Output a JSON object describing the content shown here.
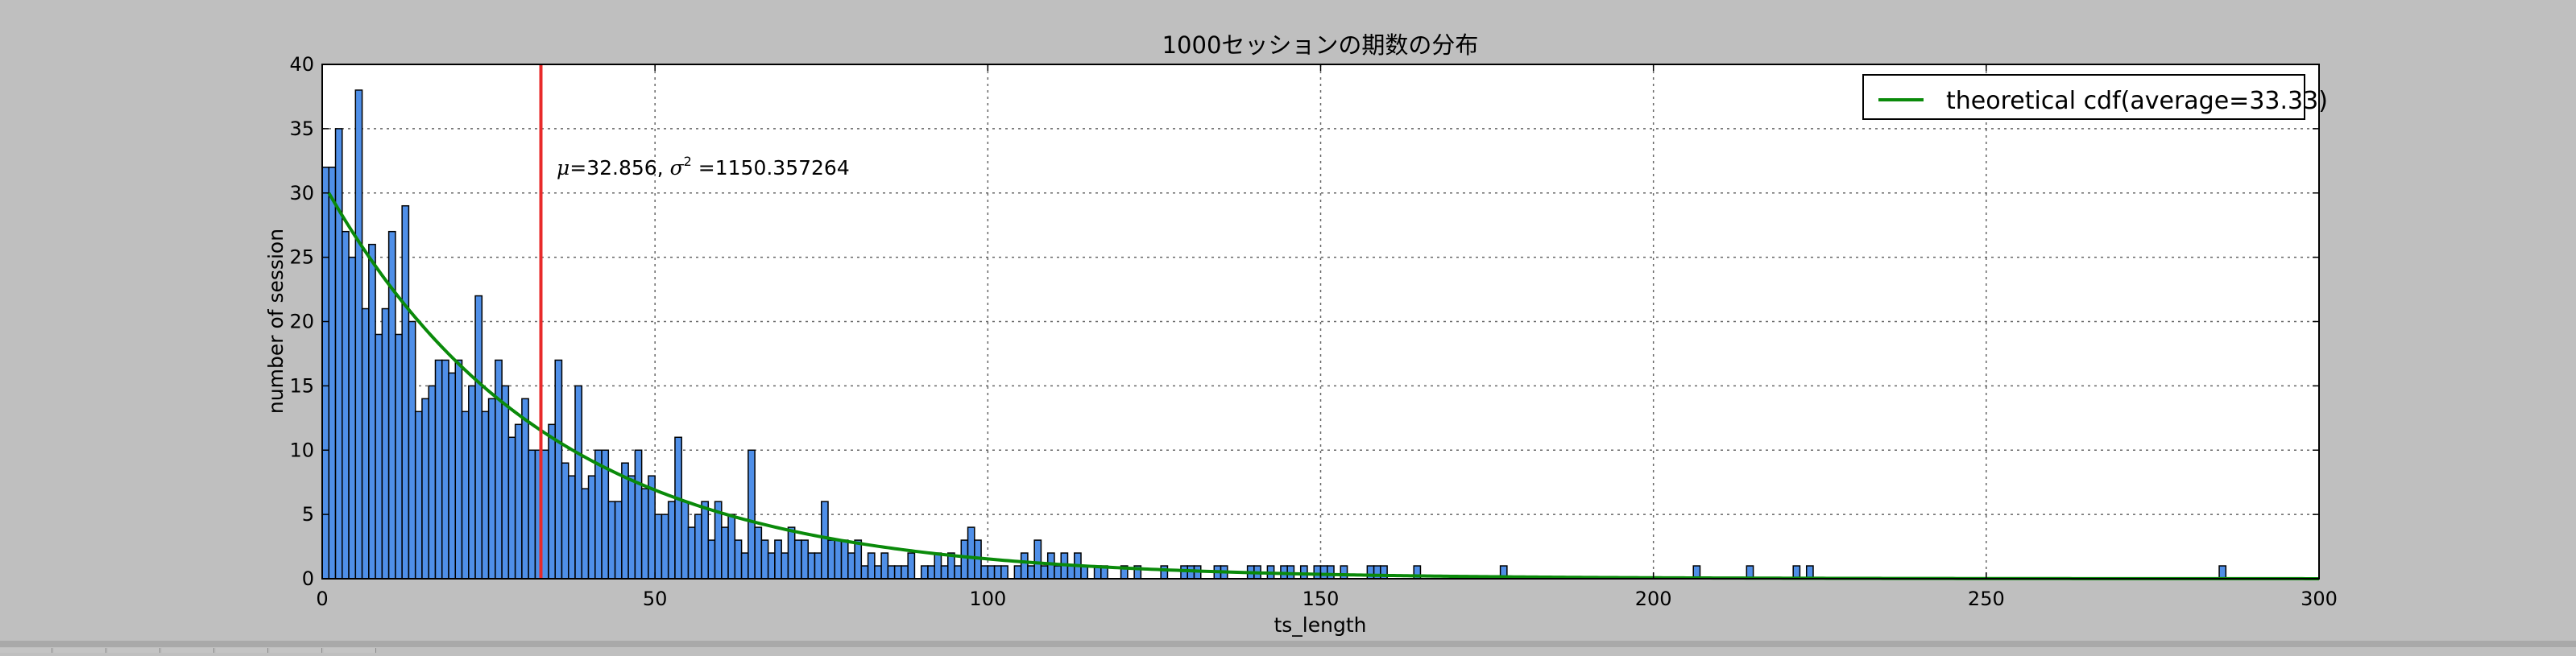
{
  "chart_data": {
    "type": "bar",
    "title": "1000セッションの期数の分布",
    "xlabel": "ts_length",
    "ylabel": "number of session",
    "xlim": [
      0,
      300
    ],
    "ylim": [
      0,
      40
    ],
    "xticks": [
      0,
      50,
      100,
      150,
      200,
      250,
      300
    ],
    "yticks": [
      0,
      5,
      10,
      15,
      20,
      25,
      30,
      35,
      40
    ],
    "grid": true,
    "legend_position": "top-right",
    "bin_width": 1,
    "bar_color": "#4f8fe8",
    "bins": [
      [
        1,
        32
      ],
      [
        2,
        32
      ],
      [
        3,
        35
      ],
      [
        4,
        27
      ],
      [
        5,
        25
      ],
      [
        6,
        38
      ],
      [
        7,
        21
      ],
      [
        8,
        26
      ],
      [
        9,
        19
      ],
      [
        10,
        21
      ],
      [
        11,
        27
      ],
      [
        12,
        19
      ],
      [
        13,
        29
      ],
      [
        14,
        20
      ],
      [
        15,
        13
      ],
      [
        16,
        14
      ],
      [
        17,
        15
      ],
      [
        18,
        17
      ],
      [
        19,
        17
      ],
      [
        20,
        16
      ],
      [
        21,
        17
      ],
      [
        22,
        13
      ],
      [
        23,
        15
      ],
      [
        24,
        22
      ],
      [
        25,
        13
      ],
      [
        26,
        14
      ],
      [
        27,
        17
      ],
      [
        28,
        15
      ],
      [
        29,
        11
      ],
      [
        30,
        12
      ],
      [
        31,
        14
      ],
      [
        32,
        10
      ],
      [
        33,
        10
      ],
      [
        34,
        10
      ],
      [
        35,
        12
      ],
      [
        36,
        17
      ],
      [
        37,
        9
      ],
      [
        38,
        8
      ],
      [
        39,
        15
      ],
      [
        40,
        7
      ],
      [
        41,
        8
      ],
      [
        42,
        10
      ],
      [
        43,
        10
      ],
      [
        44,
        6
      ],
      [
        45,
        6
      ],
      [
        46,
        9
      ],
      [
        47,
        8
      ],
      [
        48,
        10
      ],
      [
        49,
        7
      ],
      [
        50,
        8
      ],
      [
        51,
        5
      ],
      [
        52,
        5
      ],
      [
        53,
        6
      ],
      [
        54,
        11
      ],
      [
        55,
        6
      ],
      [
        56,
        4
      ],
      [
        57,
        5
      ],
      [
        58,
        6
      ],
      [
        59,
        3
      ],
      [
        60,
        6
      ],
      [
        61,
        4
      ],
      [
        62,
        5
      ],
      [
        63,
        3
      ],
      [
        64,
        2
      ],
      [
        65,
        10
      ],
      [
        66,
        4
      ],
      [
        67,
        3
      ],
      [
        68,
        2
      ],
      [
        69,
        3
      ],
      [
        70,
        2
      ],
      [
        71,
        4
      ],
      [
        72,
        3
      ],
      [
        73,
        3
      ],
      [
        74,
        2
      ],
      [
        75,
        2
      ],
      [
        76,
        6
      ],
      [
        77,
        3
      ],
      [
        78,
        3
      ],
      [
        79,
        3
      ],
      [
        80,
        2
      ],
      [
        81,
        3
      ],
      [
        82,
        1
      ],
      [
        83,
        2
      ],
      [
        84,
        1
      ],
      [
        85,
        2
      ],
      [
        86,
        1
      ],
      [
        87,
        1
      ],
      [
        88,
        1
      ],
      [
        89,
        2
      ],
      [
        91,
        1
      ],
      [
        92,
        1
      ],
      [
        93,
        2
      ],
      [
        94,
        1
      ],
      [
        95,
        2
      ],
      [
        96,
        1
      ],
      [
        97,
        3
      ],
      [
        98,
        4
      ],
      [
        99,
        3
      ],
      [
        100,
        1
      ],
      [
        101,
        1
      ],
      [
        102,
        1
      ],
      [
        103,
        1
      ],
      [
        105,
        1
      ],
      [
        106,
        2
      ],
      [
        107,
        1
      ],
      [
        108,
        3
      ],
      [
        109,
        1
      ],
      [
        110,
        2
      ],
      [
        111,
        1
      ],
      [
        112,
        2
      ],
      [
        113,
        1
      ],
      [
        114,
        2
      ],
      [
        115,
        1
      ],
      [
        117,
        1
      ],
      [
        118,
        1
      ],
      [
        121,
        1
      ],
      [
        123,
        1
      ],
      [
        127,
        1
      ],
      [
        130,
        1
      ],
      [
        131,
        1
      ],
      [
        132,
        1
      ],
      [
        135,
        1
      ],
      [
        136,
        1
      ],
      [
        140,
        1
      ],
      [
        141,
        1
      ],
      [
        143,
        1
      ],
      [
        145,
        1
      ],
      [
        146,
        1
      ],
      [
        148,
        1
      ],
      [
        150,
        1
      ],
      [
        151,
        1
      ],
      [
        152,
        1
      ],
      [
        154,
        1
      ],
      [
        158,
        1
      ],
      [
        159,
        1
      ],
      [
        160,
        1
      ],
      [
        165,
        1
      ],
      [
        178,
        1
      ],
      [
        207,
        1
      ],
      [
        215,
        1
      ],
      [
        222,
        1
      ],
      [
        224,
        1
      ],
      [
        286,
        1
      ]
    ],
    "series": [
      {
        "name": "theoretical cdf(average=33.33)",
        "type": "line",
        "color": "#0a8a0a",
        "average": 33.33,
        "scale": 30.0,
        "x_range": [
          1,
          300
        ]
      }
    ],
    "vline": {
      "x": 32.856,
      "color": "#e82a2a"
    },
    "annotation": {
      "x": 35,
      "y": 31,
      "mu_symbol": "μ",
      "mu_text": "=32.856, ",
      "sigma_symbol": "σ",
      "sigma_sup": "2",
      "sigma_text": " =1150.357264"
    }
  }
}
